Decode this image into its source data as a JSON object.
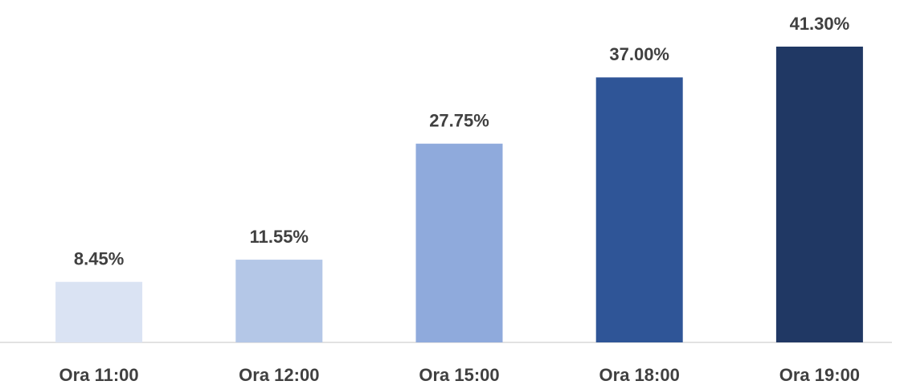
{
  "chart_data": {
    "type": "bar",
    "categories": [
      "Ora 11:00",
      "Ora 12:00",
      "Ora 15:00",
      "Ora 18:00",
      "Ora 19:00"
    ],
    "values": [
      8.45,
      11.55,
      27.75,
      37.0,
      41.3
    ],
    "value_labels": [
      "8.45%",
      "11.55%",
      "27.75%",
      "37.00%",
      "41.30%"
    ],
    "colors": [
      "#dae3f3",
      "#b4c7e7",
      "#8faadc",
      "#2f5597",
      "#203864"
    ]
  }
}
